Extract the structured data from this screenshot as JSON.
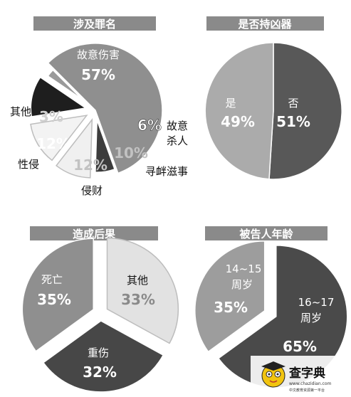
{
  "chart_data": [
    {
      "type": "pie",
      "title": "涉及罪名",
      "slices": [
        {
          "label": "故意伤害",
          "value": 57,
          "pct": "57%",
          "color": "#8f8f8f"
        },
        {
          "label": "故意杀人",
          "value": 6,
          "pct": "6%",
          "color": "#3c3c3c"
        },
        {
          "label": "寻衅滋事",
          "value": 10,
          "pct": "10%",
          "color": "#f0f0f0"
        },
        {
          "label": "侵财",
          "value": 12,
          "pct": "12%",
          "color": "#f3f3f3"
        },
        {
          "label": "性侵",
          "value": 12,
          "pct": "12%",
          "color": "#1e1e1e"
        },
        {
          "label": "其他",
          "value": 3,
          "pct": "3%",
          "color": "#9a9a9a"
        }
      ]
    },
    {
      "type": "pie",
      "title": "是否持凶器",
      "slices": [
        {
          "label": "否",
          "value": 51,
          "pct": "51%",
          "color": "#585858"
        },
        {
          "label": "是",
          "value": 49,
          "pct": "49%",
          "color": "#ababab"
        }
      ]
    },
    {
      "type": "pie",
      "title": "造成后果",
      "slices": [
        {
          "label": "其他",
          "value": 33,
          "pct": "33%",
          "color": "#e2e2e2"
        },
        {
          "label": "重伤",
          "value": 32,
          "pct": "32%",
          "color": "#474747"
        },
        {
          "label": "死亡",
          "value": 35,
          "pct": "35%",
          "color": "#8f8f8f"
        }
      ]
    },
    {
      "type": "pie",
      "title": "被告人年龄",
      "slices": [
        {
          "label": "16~17周岁",
          "value": 65,
          "pct": "65%",
          "color": "#4a4a4a"
        },
        {
          "label": "14~15周岁",
          "value": 35,
          "pct": "35%",
          "color": "#9d9d9d"
        }
      ]
    }
  ],
  "watermark": {
    "title": "查字典",
    "url": "www.chazidian.com",
    "slogan": "中文教育资源第一平台"
  }
}
